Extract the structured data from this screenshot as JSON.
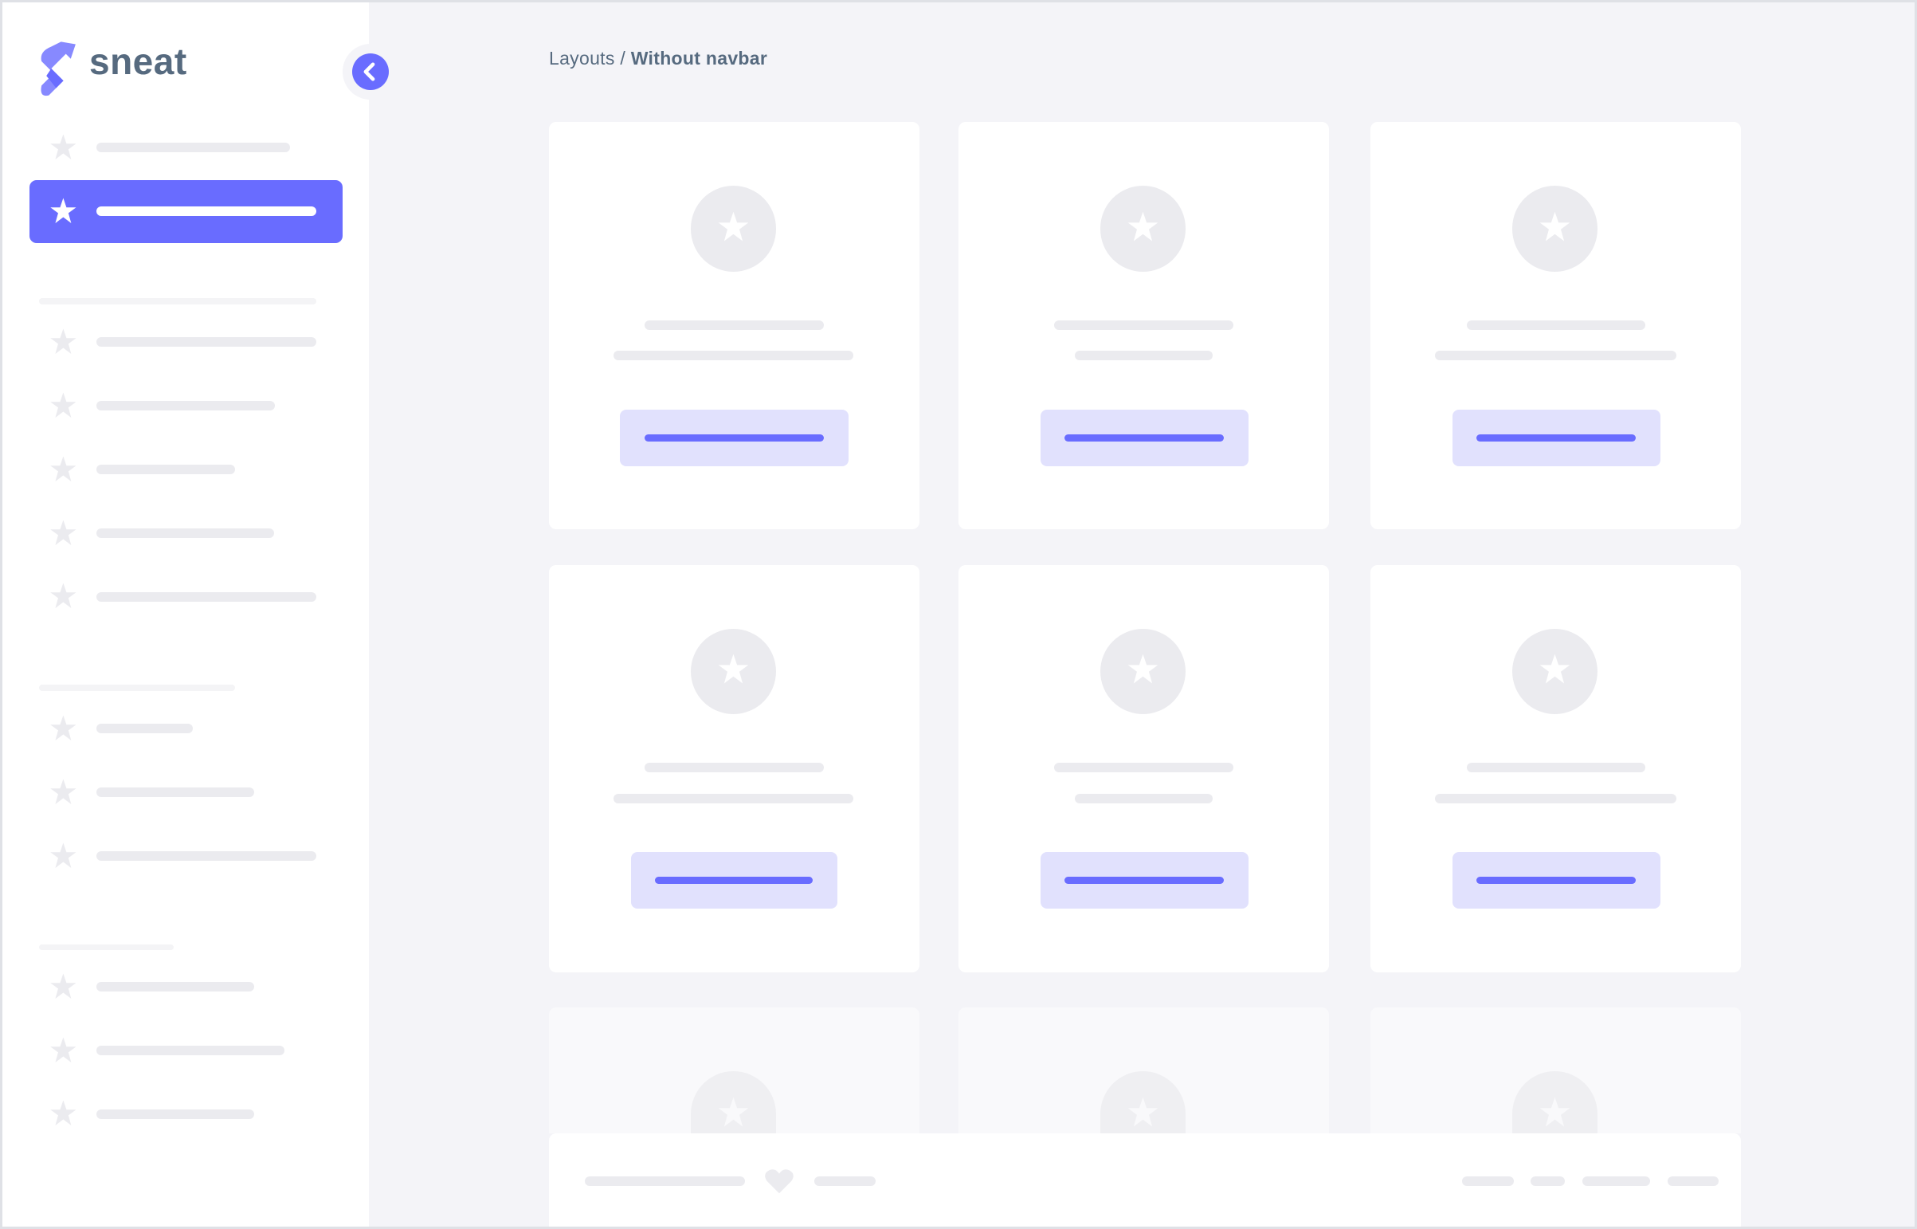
{
  "app": {
    "logo_text": "sneat"
  },
  "breadcrumb": {
    "parent": "Layouts",
    "separator": " / ",
    "current": "Without navbar"
  },
  "sidebar": {
    "toggle_icon": "chevron-left-icon",
    "active_item_index": 1,
    "item_icon": "star-icon"
  },
  "footer": {
    "icon": "heart-icon"
  },
  "colors": {
    "primary": "#696cff",
    "primary_light": "#e1e1fd",
    "background": "#f4f4f8",
    "skeleton": "#ebebef",
    "text": "#566a7f"
  }
}
